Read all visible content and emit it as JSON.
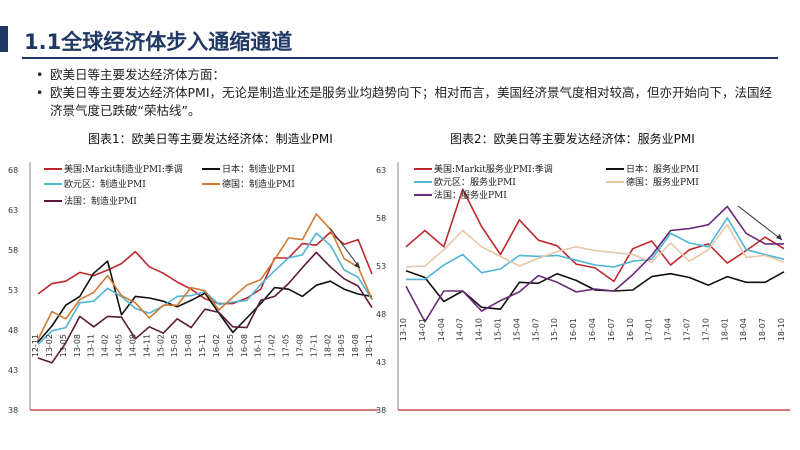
{
  "header": {
    "title": "1.1全球经济体步入通缩通道"
  },
  "bullets": [
    "欧美日等主要发达经济体方面：",
    "欧美日等主要发达经济体PMI，无论是制造业还是服务业均趋势向下；相对而言，美国经济景气度相对较高，但亦开始向下，法国经济景气度已跌破“荣枯线”。"
  ],
  "captions": {
    "chart1": "图表1：欧美日等主要发达经济体：制造业PMI",
    "chart2": "图表2：欧美日等主要发达经济体：服务业PMI"
  },
  "colors": {
    "us": "#c0282d",
    "jp": "#111111",
    "ez": "#4fb6d6",
    "de": "#d07a32",
    "fr": "#5b1a3a",
    "frSvc": "#6a2a78",
    "deSvc": "#e6c7a7"
  },
  "chart_data": [
    {
      "type": "line",
      "title": "图表1：欧美日等主要发达经济体：制造业PMI",
      "yticks": [
        38,
        43,
        48,
        53,
        58,
        63,
        68
      ],
      "ylim": [
        38,
        68
      ],
      "x": [
        "12-11",
        "13-02",
        "13-05",
        "13-08",
        "13-11",
        "14-02",
        "14-05",
        "14-08",
        "14-11",
        "15-02",
        "15-05",
        "15-08",
        "15-11",
        "16-02",
        "16-05",
        "16-08",
        "16-11",
        "17-02",
        "17-05",
        "17-08",
        "17-11",
        "18-02",
        "18-05",
        "18-08",
        "18-11"
      ],
      "legend_placement": "top-left",
      "series": [
        {
          "name": "美国:Markit制造业PMI:季调",
          "color_key": "us",
          "values": [
            52.5,
            53.8,
            54.1,
            55.2,
            54.8,
            55.5,
            56.3,
            57.8,
            55.9,
            55.1,
            54.0,
            53.1,
            51.9,
            51.3,
            51.3,
            52.0,
            53.1,
            57.0,
            57.0,
            58.8,
            58.6,
            60.2,
            58.7,
            59.3,
            55.0
          ]
        },
        {
          "name": "日本：制造业PMI",
          "color_key": "jp",
          "values": [
            46.5,
            48.5,
            51.1,
            52.2,
            55.1,
            56.6,
            49.9,
            52.2,
            52.0,
            51.6,
            50.9,
            51.7,
            52.6,
            50.1,
            47.7,
            49.5,
            51.3,
            53.3,
            53.1,
            52.2,
            53.6,
            54.1,
            53.1,
            52.5,
            52.2
          ]
        },
        {
          "name": "欧元区：制造业PMI",
          "color_key": "ez",
          "values": [
            46.2,
            47.9,
            48.3,
            51.4,
            51.6,
            53.2,
            52.2,
            50.7,
            50.1,
            51.0,
            52.2,
            52.3,
            52.8,
            51.2,
            51.5,
            51.7,
            53.7,
            55.4,
            57.0,
            57.4,
            60.1,
            58.6,
            55.5,
            54.6,
            51.8
          ]
        },
        {
          "name": "德国：制造业PMI",
          "color_key": "de",
          "values": [
            46.8,
            50.3,
            49.4,
            51.8,
            52.7,
            54.8,
            52.3,
            51.4,
            49.5,
            51.1,
            51.1,
            53.3,
            52.9,
            50.5,
            52.1,
            53.6,
            54.3,
            56.8,
            59.5,
            59.3,
            62.5,
            60.6,
            56.9,
            55.9,
            51.8
          ]
        },
        {
          "name": "法国：制造业PMI",
          "color_key": "fr",
          "values": [
            44.5,
            43.9,
            46.4,
            49.7,
            48.4,
            49.7,
            49.6,
            46.9,
            48.4,
            47.6,
            49.4,
            48.3,
            50.6,
            50.2,
            48.4,
            48.3,
            51.7,
            52.2,
            53.8,
            55.8,
            57.7,
            55.9,
            54.4,
            53.5,
            50.8
          ]
        }
      ]
    },
    {
      "type": "line",
      "title": "图表2：欧美日等主要发达经济体：服务业PMI",
      "yticks": [
        38,
        43,
        48,
        53,
        58,
        63
      ],
      "ylim": [
        38,
        63
      ],
      "x": [
        "13-10",
        "14-01",
        "14-04",
        "14-07",
        "14-10",
        "15-01",
        "15-04",
        "15-07",
        "15-10",
        "16-01",
        "16-04",
        "16-07",
        "16-10",
        "17-01",
        "17-04",
        "17-07",
        "17-10",
        "18-01",
        "18-04",
        "18-07",
        "18-10"
      ],
      "legend_placement": "top-left",
      "series": [
        {
          "name": "美国:Markit服务业PMI:季调",
          "color_key": "us",
          "values": [
            55.0,
            56.7,
            55.0,
            61.0,
            57.1,
            54.2,
            57.8,
            55.7,
            55.1,
            53.2,
            52.8,
            51.4,
            54.8,
            55.6,
            53.1,
            54.7,
            55.3,
            53.3,
            54.6,
            56.0,
            54.8
          ]
        },
        {
          "name": "日本：服务业PMI",
          "color_key": "jp",
          "values": [
            52.5,
            51.8,
            49.3,
            50.4,
            48.7,
            48.5,
            51.3,
            51.2,
            52.2,
            51.5,
            50.5,
            50.4,
            50.5,
            51.9,
            52.2,
            51.8,
            51.0,
            51.9,
            51.3,
            51.3,
            52.4
          ]
        },
        {
          "name": "欧元区：服务业PMI",
          "color_key": "ez",
          "values": [
            51.6,
            51.6,
            53.1,
            54.2,
            52.3,
            52.7,
            54.1,
            54.0,
            54.1,
            53.6,
            53.1,
            52.9,
            53.5,
            53.7,
            56.4,
            55.4,
            55.0,
            58.0,
            54.7,
            54.2,
            53.7
          ]
        },
        {
          "name": "德国：服务业PMI",
          "color_key": "deSvc",
          "values": [
            52.9,
            53.0,
            54.7,
            56.7,
            55.0,
            54.0,
            53.0,
            53.8,
            54.5,
            55.0,
            54.6,
            54.4,
            54.2,
            53.4,
            55.4,
            53.5,
            54.7,
            57.3,
            53.9,
            54.1,
            53.4
          ]
        },
        {
          "name": "法国：服务业PMI",
          "color_key": "frSvc",
          "values": [
            50.9,
            47.2,
            50.4,
            50.4,
            48.3,
            49.4,
            50.3,
            52.0,
            51.3,
            50.3,
            50.6,
            50.4,
            52.1,
            54.1,
            56.7,
            56.9,
            57.3,
            59.2,
            56.4,
            55.3,
            55.3
          ]
        }
      ]
    }
  ]
}
